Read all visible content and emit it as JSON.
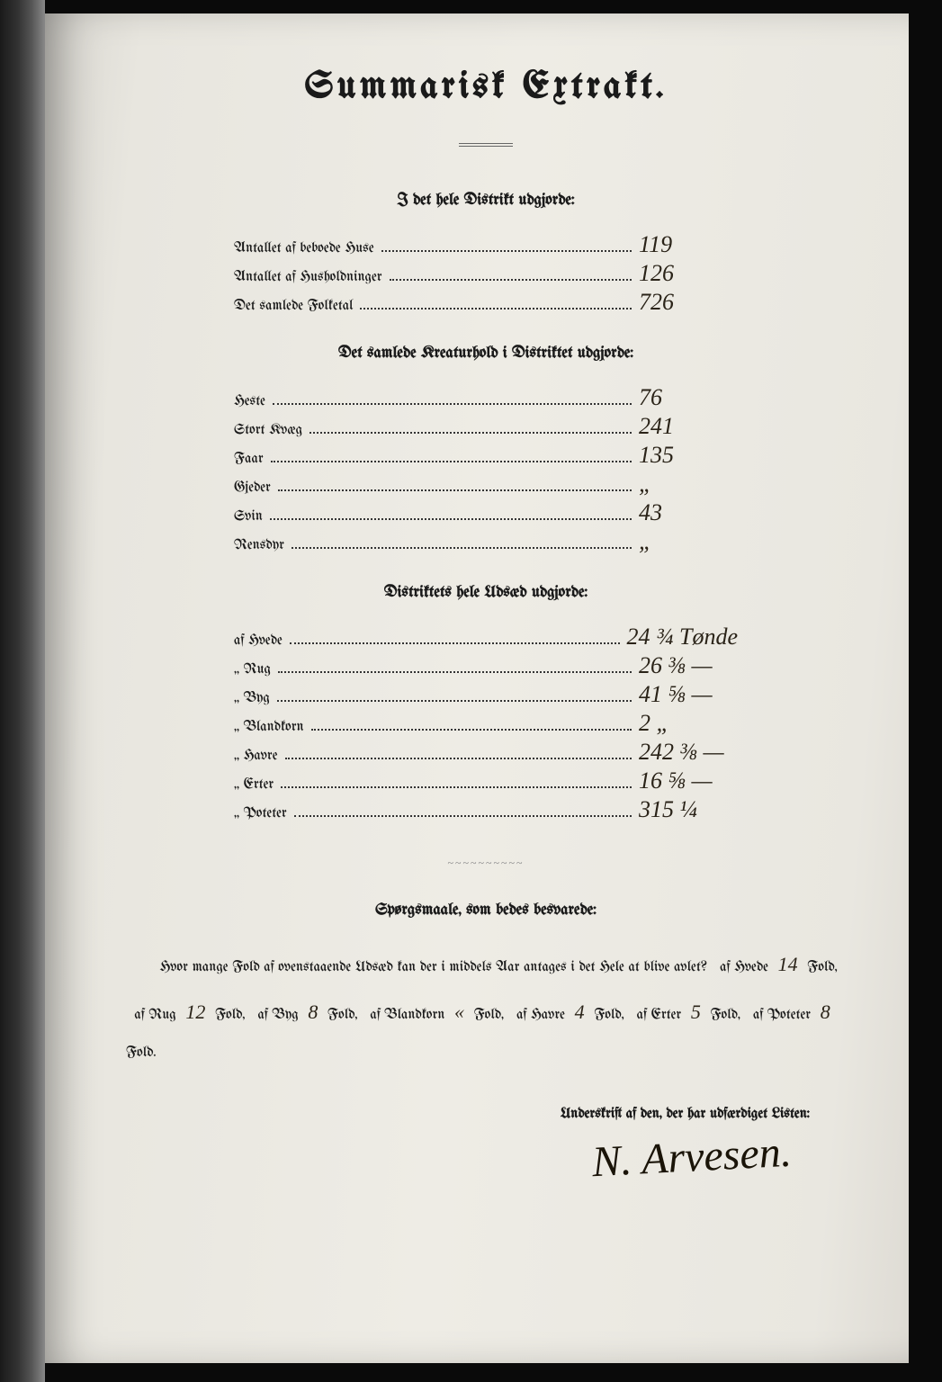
{
  "title": "Summarisk Extrakt.",
  "section1": {
    "heading": "I det hele Distrikt udgjorde:",
    "rows": [
      {
        "label": "Antallet af beboede Huse",
        "value": "119"
      },
      {
        "label": "Antallet af Husholdninger",
        "value": "126"
      },
      {
        "label": "Det samlede Folketal",
        "value": "726"
      }
    ]
  },
  "section2": {
    "heading": "Det samlede Kreaturhold i Distriktet udgjorde:",
    "rows": [
      {
        "label": "Heste",
        "value": "76"
      },
      {
        "label": "Stort Kvæg",
        "value": "241"
      },
      {
        "label": "Faar",
        "value": "135"
      },
      {
        "label": "Gjeder",
        "value": "„"
      },
      {
        "label": "Svin",
        "value": "43"
      },
      {
        "label": "Rensdyr",
        "value": "„"
      }
    ]
  },
  "section3": {
    "heading": "Distriktets hele Udsæd udgjorde:",
    "rows": [
      {
        "label": "af Hvede",
        "value": "24 ¾ Tønde"
      },
      {
        "label": "„  Rug",
        "value": "26 ⅜ —"
      },
      {
        "label": "„  Byg",
        "value": "41 ⅝ —"
      },
      {
        "label": "„  Blandkorn",
        "value": "2 „"
      },
      {
        "label": "„  Havre",
        "value": "242 ⅜ —"
      },
      {
        "label": "„  Erter",
        "value": "16 ⅝ —"
      },
      {
        "label": "„  Poteter",
        "value": "315 ¼"
      }
    ]
  },
  "questions": {
    "heading": "Spørgsmaale, som bedes besvarede:",
    "lead": "Hvor mange Fold af ovenstaaende Udsæd kan der i middels Aar antages i det Hele at blive avlet?",
    "parts": [
      {
        "pre": "af Hvede",
        "val": "14",
        "post": "Fold,"
      },
      {
        "pre": "af Rug",
        "val": "12",
        "post": "Fold,"
      },
      {
        "pre": "af Byg",
        "val": "8",
        "post": "Fold,"
      },
      {
        "pre": "af Blandkorn",
        "val": "«",
        "post": "Fold,"
      },
      {
        "pre": "af Havre",
        "val": "4",
        "post": "Fold,"
      },
      {
        "pre": "af Erter",
        "val": "5",
        "post": "Fold,"
      },
      {
        "pre": "af Poteter",
        "val": "8",
        "post": "Fold."
      }
    ]
  },
  "sign_label": "Underskrift af den, der har udfærdiget Listen:",
  "signature": "N. Arvesen."
}
